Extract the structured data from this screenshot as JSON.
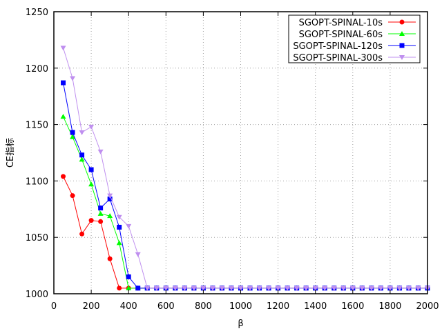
{
  "chart_data": {
    "type": "line",
    "title": "",
    "xlabel": "β",
    "ylabel": "CE指标",
    "xlim": [
      0,
      2000
    ],
    "ylim": [
      1000,
      1250
    ],
    "x_ticks": [
      0,
      200,
      400,
      600,
      800,
      1000,
      1200,
      1400,
      1600,
      1800,
      2000
    ],
    "y_ticks": [
      1000,
      1050,
      1100,
      1150,
      1200,
      1250
    ],
    "grid": true,
    "legend_position": "top-right",
    "x": [
      50,
      100,
      150,
      200,
      250,
      300,
      350,
      400,
      450,
      500,
      550,
      600,
      650,
      700,
      750,
      800,
      850,
      900,
      950,
      1000,
      1050,
      1100,
      1150,
      1200,
      1250,
      1300,
      1350,
      1400,
      1450,
      1500,
      1550,
      1600,
      1650,
      1700,
      1750,
      1800,
      1850,
      1900,
      1950,
      2000
    ],
    "series": [
      {
        "name": "SGOPT-SPINAL-10s",
        "color": "#ff0000",
        "marker": "circle",
        "values": [
          1104,
          1087,
          1053,
          1065,
          1064,
          1031,
          1005,
          1005,
          1005,
          1005,
          1005,
          1005,
          1005,
          1005,
          1005,
          1005,
          1005,
          1005,
          1005,
          1005,
          1005,
          1005,
          1005,
          1005,
          1005,
          1005,
          1005,
          1005,
          1005,
          1005,
          1005,
          1005,
          1005,
          1005,
          1005,
          1005,
          1005,
          1005,
          1005,
          1005
        ]
      },
      {
        "name": "SGOPT-SPINAL-60s",
        "color": "#00ff00",
        "marker": "triangle-up",
        "values": [
          1157,
          1139,
          1119,
          1097,
          1071,
          1069,
          1045,
          1005,
          1005,
          1005,
          1005,
          1005,
          1005,
          1005,
          1005,
          1005,
          1005,
          1005,
          1005,
          1005,
          1005,
          1005,
          1005,
          1005,
          1005,
          1005,
          1005,
          1005,
          1005,
          1005,
          1005,
          1005,
          1005,
          1005,
          1005,
          1005,
          1005,
          1005,
          1005,
          1005
        ]
      },
      {
        "name": "SGOPT-SPINAL-120s",
        "color": "#0000ff",
        "marker": "square",
        "values": [
          1187,
          1143,
          1123,
          1110,
          1076,
          1084,
          1059,
          1015,
          1005,
          1005,
          1005,
          1005,
          1005,
          1005,
          1005,
          1005,
          1005,
          1005,
          1005,
          1005,
          1005,
          1005,
          1005,
          1005,
          1005,
          1005,
          1005,
          1005,
          1005,
          1005,
          1005,
          1005,
          1005,
          1005,
          1005,
          1005,
          1005,
          1005,
          1005,
          1005
        ]
      },
      {
        "name": "SGOPT-SPINAL-300s",
        "color": "#bf8fef",
        "marker": "triangle-down",
        "values": [
          1218,
          1191,
          1143,
          1148,
          1126,
          1087,
          1068,
          1060,
          1035,
          1005,
          1005,
          1005,
          1005,
          1005,
          1005,
          1005,
          1005,
          1005,
          1005,
          1005,
          1005,
          1005,
          1005,
          1005,
          1005,
          1005,
          1005,
          1005,
          1005,
          1005,
          1005,
          1005,
          1005,
          1005,
          1005,
          1005,
          1005,
          1005,
          1005,
          1005
        ]
      }
    ]
  }
}
